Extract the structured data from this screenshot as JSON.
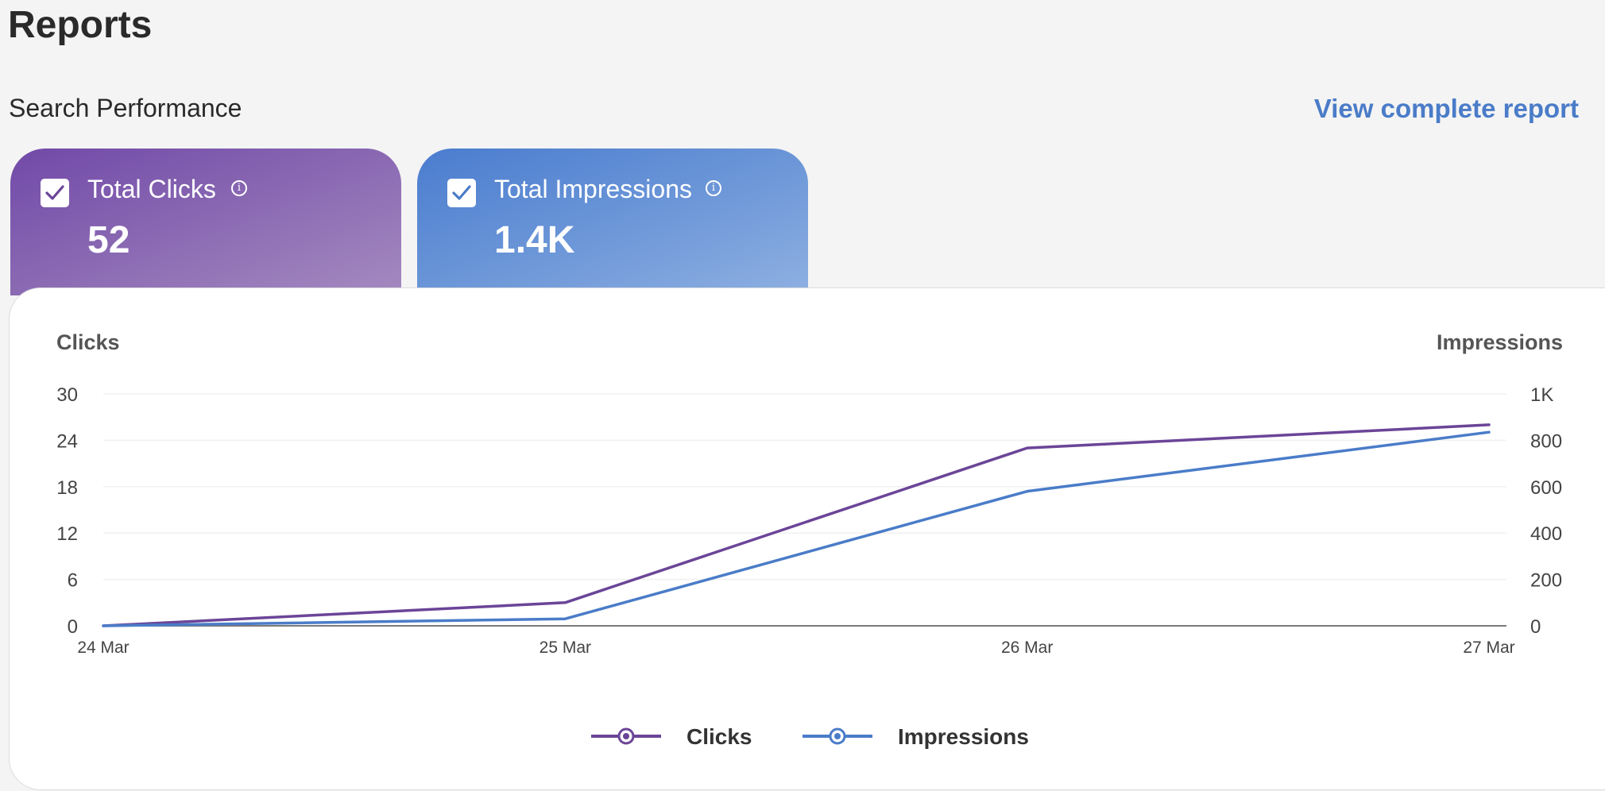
{
  "page": {
    "title": "Reports",
    "section_title": "Search Performance",
    "view_link": "View complete report"
  },
  "cards": [
    {
      "label": "Total Clicks",
      "value": "52",
      "checked": true,
      "color": "#6b4598"
    },
    {
      "label": "Total Impressions",
      "value": "1.4K",
      "checked": true,
      "color": "#4a7cc8"
    }
  ],
  "icons": {
    "check": "check-icon",
    "info": "info-icon",
    "legend_marker": "legend-marker-icon"
  },
  "chart_data": {
    "type": "line",
    "x": [
      "24 Mar",
      "25 Mar",
      "26 Mar",
      "27 Mar"
    ],
    "series": [
      {
        "name": "Clicks",
        "axis": "left",
        "values": [
          0,
          3,
          23,
          26
        ],
        "color": "#6b4598"
      },
      {
        "name": "Impressions",
        "axis": "right",
        "values": [
          0,
          30,
          580,
          835
        ],
        "color": "#4a7cc8"
      }
    ],
    "y_left": {
      "label": "Clicks",
      "ticks": [
        "0",
        "6",
        "12",
        "18",
        "24",
        "30"
      ],
      "tick_values": [
        0,
        6,
        12,
        18,
        24,
        30
      ],
      "range": [
        0,
        30
      ]
    },
    "y_right": {
      "label": "Impressions",
      "ticks": [
        "0",
        "200",
        "400",
        "600",
        "800",
        "1K"
      ],
      "tick_values": [
        0,
        200,
        400,
        600,
        800,
        1000
      ],
      "range": [
        0,
        1000
      ]
    },
    "grid": true,
    "legend": "bottom-center"
  }
}
